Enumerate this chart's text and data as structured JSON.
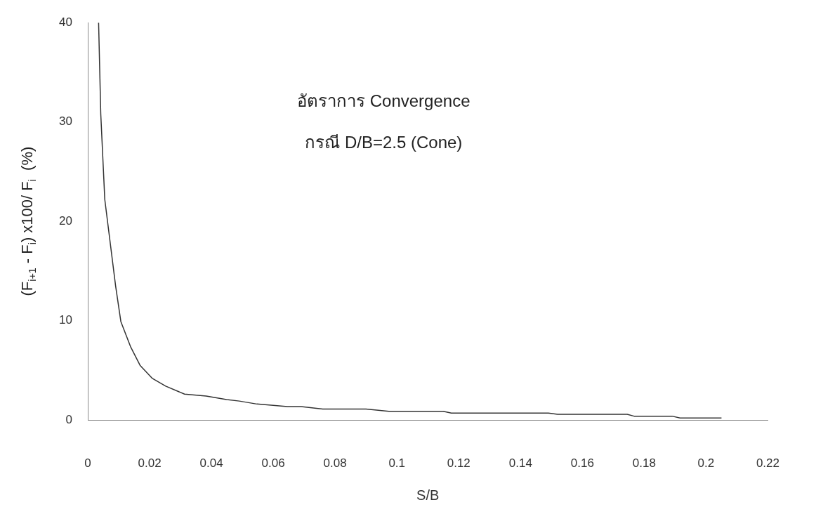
{
  "chart_data": {
    "type": "line",
    "title": "อัตราการ Convergence",
    "subtitle": "กรณี D/B=2.5 (Cone)",
    "xlabel": "S/B",
    "ylabel": "(F$_{i+1}$ - F$_{i}$) x100/ F$_{i}$  (%)",
    "x": [
      0.0035,
      0.0042,
      0.0055,
      0.009,
      0.0107,
      0.0138,
      0.0169,
      0.0208,
      0.0252,
      0.0313,
      0.0383,
      0.0449,
      0.049,
      0.0547,
      0.0646,
      0.069,
      0.076,
      0.09,
      0.0974,
      0.115,
      0.1176,
      0.149,
      0.152,
      0.1745,
      0.1767,
      0.189,
      0.1916,
      0.205
    ],
    "series": [
      {
        "color": "#333333",
        "values": [
          40,
          30.8,
          22.2,
          13.5,
          9.9,
          7.4,
          5.5,
          4.2,
          3.4,
          2.6,
          2.4,
          2.05,
          1.9,
          1.6,
          1.35,
          1.35,
          1.1,
          1.1,
          0.87,
          0.87,
          0.69,
          0.69,
          0.56,
          0.56,
          0.38,
          0.38,
          0.2,
          0.2
        ]
      }
    ],
    "xlim": [
      0,
      0.22
    ],
    "xticks": [
      0,
      0.02,
      0.04,
      0.06,
      0.08,
      0.1,
      0.12,
      0.14,
      0.16,
      0.18,
      0.2,
      0.22
    ],
    "ylim": [
      0,
      40
    ],
    "yticks": [
      0,
      10,
      20,
      30,
      40
    ],
    "grid": false,
    "legend": false,
    "marker": "none",
    "line_style": "solid"
  }
}
